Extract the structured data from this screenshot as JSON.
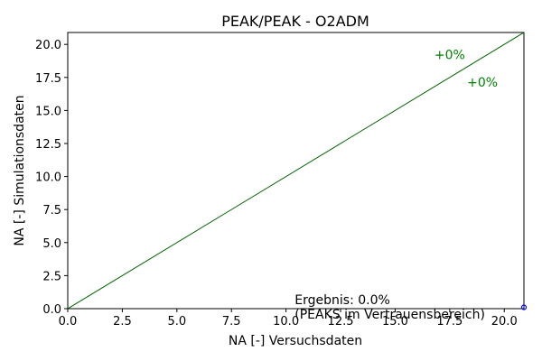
{
  "chart_data": {
    "type": "scatter",
    "title": "PEAK/PEAK - O2ADM",
    "xlabel": "NA [-] Versuchsdaten",
    "ylabel": "NA [-] Simulationsdaten",
    "xlim": [
      0,
      20.9
    ],
    "ylim": [
      0,
      20.9
    ],
    "xticks": [
      "0.0",
      "2.5",
      "5.0",
      "7.5",
      "10.0",
      "12.5",
      "15.0",
      "17.5",
      "20.0"
    ],
    "yticks": [
      "0.0",
      "2.5",
      "5.0",
      "7.5",
      "10.0",
      "12.5",
      "15.0",
      "17.5",
      "20.0"
    ],
    "xtick_values": [
      0,
      2.5,
      5,
      7.5,
      10,
      12.5,
      15,
      17.5,
      20
    ],
    "ytick_values": [
      0,
      2.5,
      5,
      7.5,
      10,
      12.5,
      15,
      17.5,
      20
    ],
    "grid": false,
    "reference_lines": [
      {
        "x": [
          0,
          20.9
        ],
        "y": [
          0,
          20.9
        ],
        "color": "#006400"
      },
      {
        "x": [
          0,
          20.9
        ],
        "y": [
          0,
          20.9
        ],
        "color": "#006400"
      }
    ],
    "points": [
      {
        "x": 20.9,
        "y": 0.1,
        "color": "#0000ff"
      }
    ],
    "annotations": [
      {
        "text": "+0%",
        "x": 16.8,
        "y": 18.9,
        "color": "#008000"
      },
      {
        "text": "+0%",
        "x": 18.3,
        "y": 16.8,
        "color": "#008000"
      }
    ],
    "result_lines": [
      "Ergebnis: 0.0%",
      "(PEAKS im Vertrauensbereich)"
    ],
    "result_pos": {
      "x": 10.4,
      "y": 0.6
    }
  }
}
